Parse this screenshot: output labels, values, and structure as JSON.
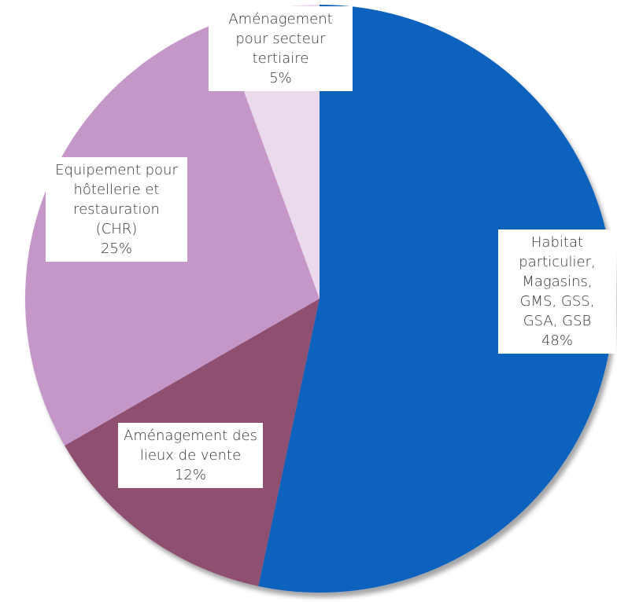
{
  "chart_data": {
    "type": "pie",
    "categories": [
      "Habitat particulier, Magasins, GMS, GSS, GSA, GSB",
      "Aménagement des lieux de vente",
      "Equipement pour hôtellerie et restauration (CHR)",
      "Aménagement pour secteur tertiaire"
    ],
    "values": [
      48,
      12,
      25,
      5
    ],
    "value_labels": [
      "48%",
      "12%",
      "25%",
      "5%"
    ],
    "colors": [
      "#0d62bd",
      "#8f5070",
      "#c597c9",
      "#ebd9ec"
    ]
  }
}
